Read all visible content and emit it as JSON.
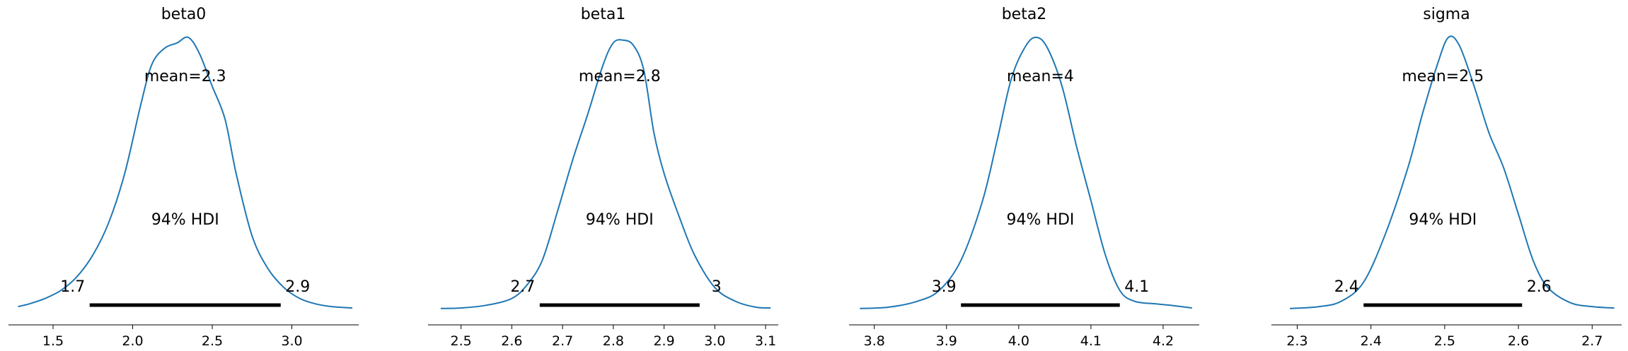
{
  "chart_data": [
    {
      "type": "line",
      "title": "beta0",
      "mean_label": "mean=2.3",
      "hdi_label": "94% HDI",
      "hdi": [
        1.73,
        2.93
      ],
      "hdi_low_label": "1.7",
      "hdi_high_label": "2.9",
      "xlim": [
        1.22,
        3.42
      ],
      "ticks": [
        1.5,
        2.0,
        2.5,
        3.0
      ],
      "tick_labels": [
        "1.5",
        "2.0",
        "2.5",
        "3.0"
      ],
      "x": [
        1.28,
        1.35,
        1.45,
        1.55,
        1.65,
        1.75,
        1.85,
        1.95,
        2.05,
        2.12,
        2.2,
        2.28,
        2.35,
        2.42,
        2.5,
        2.58,
        2.65,
        2.75,
        2.85,
        2.95,
        3.05,
        3.15,
        3.25,
        3.38
      ],
      "y": [
        0.01,
        0.02,
        0.04,
        0.07,
        0.12,
        0.2,
        0.32,
        0.5,
        0.75,
        0.9,
        0.96,
        0.98,
        1.0,
        0.94,
        0.82,
        0.7,
        0.5,
        0.27,
        0.15,
        0.08,
        0.04,
        0.02,
        0.01,
        0.005
      ]
    },
    {
      "type": "line",
      "title": "beta1",
      "mean_label": "mean=2.8",
      "hdi_label": "94% HDI",
      "hdi": [
        2.655,
        2.97
      ],
      "hdi_low_label": "2.7",
      "hdi_high_label": "3",
      "xlim": [
        2.435,
        3.125
      ],
      "ticks": [
        2.5,
        2.6,
        2.7,
        2.8,
        2.9,
        3.0,
        3.1
      ],
      "tick_labels": [
        "2.5",
        "2.6",
        "2.7",
        "2.8",
        "2.9",
        "3.0",
        "3.1"
      ],
      "x": [
        2.46,
        2.5,
        2.55,
        2.6,
        2.63,
        2.66,
        2.69,
        2.72,
        2.75,
        2.78,
        2.8,
        2.82,
        2.84,
        2.86,
        2.88,
        2.9,
        2.93,
        2.96,
        3.0,
        3.04,
        3.08,
        3.11
      ],
      "y": [
        0.003,
        0.005,
        0.015,
        0.04,
        0.09,
        0.18,
        0.36,
        0.55,
        0.72,
        0.9,
        0.98,
        0.99,
        0.97,
        0.88,
        0.65,
        0.5,
        0.34,
        0.2,
        0.08,
        0.03,
        0.008,
        0.005
      ]
    },
    {
      "type": "line",
      "title": "beta2",
      "mean_label": "mean=4",
      "hdi_label": "94% HDI",
      "hdi": [
        3.92,
        4.14
      ],
      "hdi_low_label": "3.9",
      "hdi_high_label": "4.1",
      "xlim": [
        3.765,
        4.25
      ],
      "ticks": [
        3.8,
        3.9,
        4.0,
        4.1,
        4.2
      ],
      "tick_labels": [
        "3.8",
        "3.9",
        "4.0",
        "4.1",
        "4.2"
      ],
      "x": [
        3.78,
        3.82,
        3.86,
        3.89,
        3.92,
        3.95,
        3.97,
        3.99,
        4.01,
        4.025,
        4.04,
        4.06,
        4.08,
        4.1,
        4.12,
        4.14,
        4.16,
        4.19,
        4.21,
        4.24
      ],
      "y": [
        0.003,
        0.008,
        0.03,
        0.07,
        0.18,
        0.4,
        0.62,
        0.85,
        0.97,
        1.0,
        0.96,
        0.82,
        0.6,
        0.4,
        0.2,
        0.07,
        0.03,
        0.02,
        0.015,
        0.005
      ]
    },
    {
      "type": "line",
      "title": "sigma",
      "mean_label": "mean=2.5",
      "hdi_label": "94% HDI",
      "hdi": [
        2.39,
        2.605
      ],
      "hdi_low_label": "2.4",
      "hdi_high_label": "2.6",
      "xlim": [
        2.265,
        2.74
      ],
      "ticks": [
        2.3,
        2.4,
        2.5,
        2.6,
        2.7
      ],
      "tick_labels": [
        "2.3",
        "2.4",
        "2.5",
        "2.6",
        "2.7"
      ],
      "x": [
        2.29,
        2.33,
        2.36,
        2.39,
        2.42,
        2.45,
        2.47,
        2.49,
        2.505,
        2.52,
        2.54,
        2.56,
        2.58,
        2.6,
        2.62,
        2.64,
        2.67,
        2.7,
        2.73
      ],
      "y": [
        0.003,
        0.01,
        0.03,
        0.1,
        0.28,
        0.52,
        0.72,
        0.9,
        1.0,
        0.97,
        0.82,
        0.65,
        0.52,
        0.35,
        0.18,
        0.08,
        0.025,
        0.01,
        0.005
      ]
    }
  ]
}
